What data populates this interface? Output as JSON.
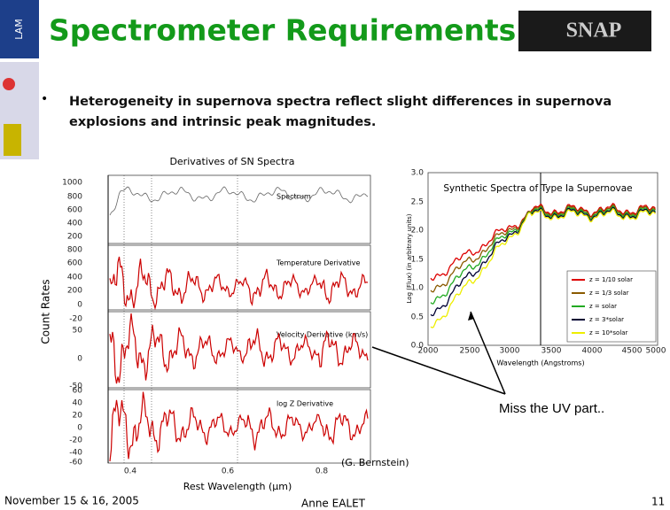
{
  "header": {
    "title": "Spectrometer Requirements",
    "logo": "SNAP",
    "side_logo": "LAM"
  },
  "bullet": {
    "text": "Heterogeneity in supernova spectra reflect slight differences in supernova explosions and intrinsic peak magnitudes."
  },
  "left_figure": {
    "title": "Derivatives of SN Spectra",
    "y_label": "Count Rates",
    "x_label": "Rest Wavelength (μm)",
    "x_ticks": [
      "0.4",
      "0.6",
      "0.8"
    ],
    "panels": [
      {
        "label": "Spectrum",
        "y_ticks": [
          "1000",
          "800",
          "600",
          "400",
          "200"
        ]
      },
      {
        "label": "Temperature Derivative",
        "y_ticks": [
          "800",
          "600",
          "400",
          "200",
          "0"
        ]
      },
      {
        "label": "Velocity Derivative (km/s)",
        "y_ticks": [
          "-20",
          "50",
          "0",
          "-50"
        ]
      },
      {
        "label": "log Z Derivative",
        "y_ticks": [
          "60",
          "40",
          "20",
          "0",
          "-20",
          "-40",
          "-60"
        ]
      }
    ]
  },
  "right_figure": {
    "title": "Synthetic Spectra of Type Ia Supernovae",
    "y_label": "Log (Flux) (in arbitrary units)",
    "x_label": "Wavelength (Angstroms)",
    "y_ticks": [
      "3.0",
      "2.5",
      "2.0",
      "1.5",
      "1.0",
      "0.5",
      "0.0"
    ],
    "x_ticks": [
      "2000",
      "2500",
      "3000",
      "3500",
      "4000",
      "4500",
      "5000"
    ],
    "legend": [
      "z = 1/10 solar",
      "z = 1/3 solar",
      "z = solar",
      "z = 3*solar",
      "z = 10*solar"
    ]
  },
  "annotation": "Miss the UV part..",
  "credit": "(G. Bernstein)",
  "footer": {
    "date": "November 15 & 16, 2005",
    "author": "Anne EALET",
    "page": "11"
  }
}
